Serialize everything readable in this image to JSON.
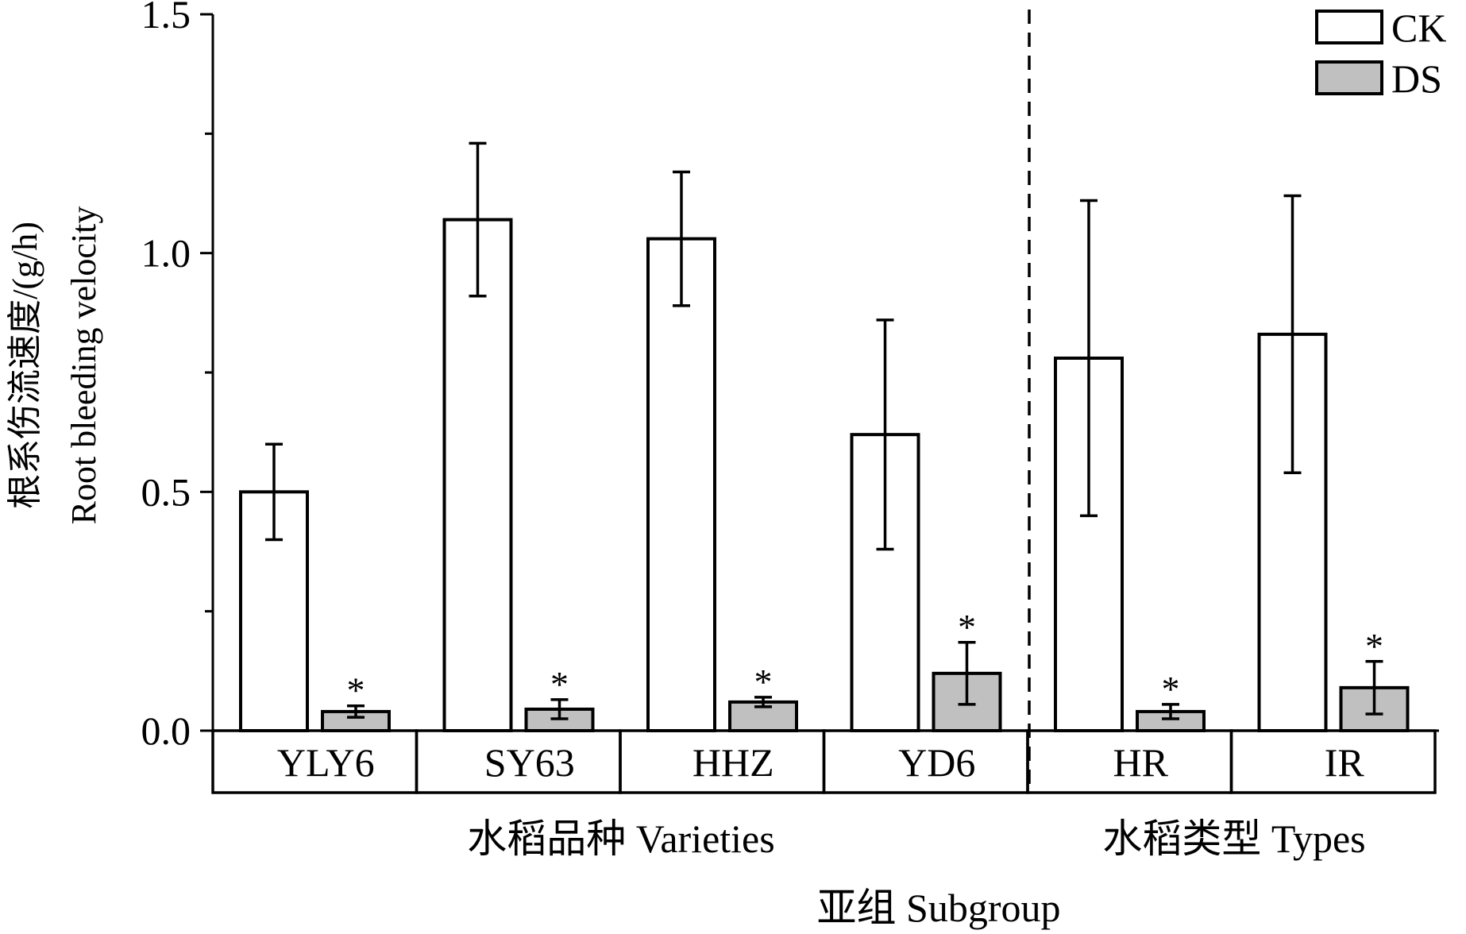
{
  "chart_data": {
    "type": "bar",
    "ylabel": "根系伤流速度/(g/h)",
    "ylabel_en": "Root bleeding velocity",
    "xlabel": "亚组 Subgroup",
    "ylim": [
      0,
      1.5
    ],
    "yticks": [
      "0.0",
      "0.5",
      "1.0",
      "1.5"
    ],
    "categories": [
      "YLY6",
      "SY63",
      "HHZ",
      "YD6",
      "HR",
      "IR"
    ],
    "groups": [
      {
        "label": "水稻品种 Varieties",
        "categories": [
          "YLY6",
          "SY63",
          "HHZ",
          "YD6"
        ]
      },
      {
        "label": "水稻类型  Types",
        "categories": [
          "HR",
          "IR"
        ]
      }
    ],
    "series": [
      {
        "name": "CK",
        "color": "#ffffff",
        "values": [
          0.5,
          1.07,
          1.03,
          0.62,
          0.78,
          0.83
        ],
        "errors": [
          0.1,
          0.16,
          0.14,
          0.24,
          0.33,
          0.29
        ]
      },
      {
        "name": "DS",
        "color": "#c0c0c0",
        "values": [
          0.04,
          0.045,
          0.06,
          0.12,
          0.04,
          0.09
        ],
        "errors": [
          0.012,
          0.02,
          0.01,
          0.065,
          0.015,
          0.055
        ]
      }
    ],
    "significance": [
      "*",
      "*",
      "*",
      "*",
      "*",
      "*"
    ],
    "legend_position": "top-right",
    "grid": false
  }
}
